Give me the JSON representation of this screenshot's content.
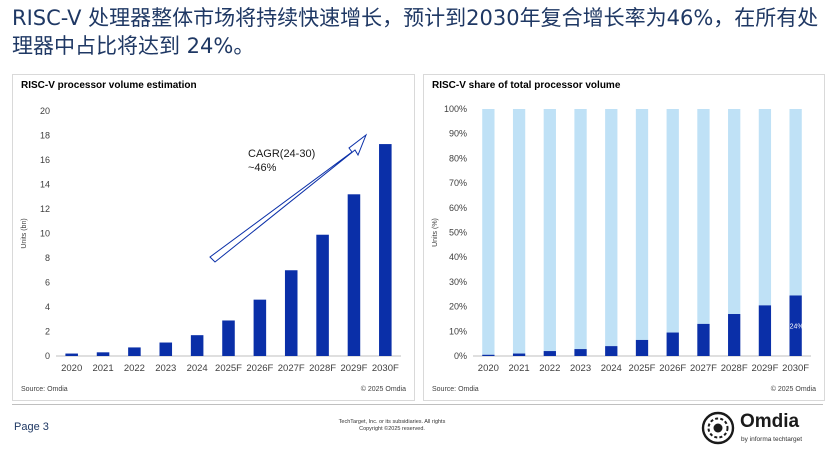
{
  "headline": "RISC-V 处理器整体市场将持续快速增长，预计到2030年复合增长率为46%，在所有处理器中占比将达到 24%。",
  "footer": {
    "page": "Page 3",
    "copyright_line1": "TechTarget, Inc. or its subsidiaries. All rights",
    "copyright_line2": "Copyright ©2025 reserved.",
    "logo_word": "Omdia",
    "logo_tagline": "by informa techtarget"
  },
  "colors": {
    "bar_dark": "#0a2fa8",
    "bar_light": "#bfe1f6",
    "headline": "#1f3864"
  },
  "chart_data": [
    {
      "type": "bar",
      "title": "RISC-V processor volume estimation",
      "ylabel": "Units (bn)",
      "categories": [
        "2020",
        "2021",
        "2022",
        "2023",
        "2024",
        "2025F",
        "2026F",
        "2027F",
        "2028F",
        "2029F",
        "2030F"
      ],
      "values": [
        0.2,
        0.3,
        0.7,
        1.1,
        1.7,
        2.9,
        4.6,
        7.0,
        9.9,
        13.2,
        17.3
      ],
      "ylim": [
        0,
        20
      ],
      "yticks": [
        "0",
        "2",
        "4",
        "6",
        "8",
        "10",
        "12",
        "14",
        "16",
        "18",
        "20"
      ],
      "annotation": "CAGR(24-30)\n~46%",
      "source": "Source: Omdia",
      "credit": "© 2025 Omdia",
      "grid": false
    },
    {
      "type": "bar",
      "stacked": true,
      "title": "RISC-V share of total processor volume",
      "ylabel": "Units (%)",
      "categories": [
        "2020",
        "2021",
        "2022",
        "2023",
        "2024",
        "2025F",
        "2026F",
        "2027F",
        "2028F",
        "2029F",
        "2030F"
      ],
      "series": [
        {
          "values": [
            0.5,
            1.0,
            2.0,
            2.8,
            4.0,
            6.5,
            9.5,
            13.0,
            17.0,
            20.5,
            24.5
          ]
        },
        {
          "values": [
            99.5,
            99.0,
            98.0,
            97.2,
            96.0,
            93.5,
            90.5,
            87.0,
            83.0,
            79.5,
            75.5
          ]
        }
      ],
      "ylim": [
        0,
        100
      ],
      "yticks": [
        "0%",
        "10%",
        "20%",
        "30%",
        "40%",
        "50%",
        "60%",
        "70%",
        "80%",
        "90%",
        "100%"
      ],
      "data_label": "24%",
      "source": "Source: Omdia",
      "credit": "© 2025 Omdia",
      "grid": false
    }
  ]
}
